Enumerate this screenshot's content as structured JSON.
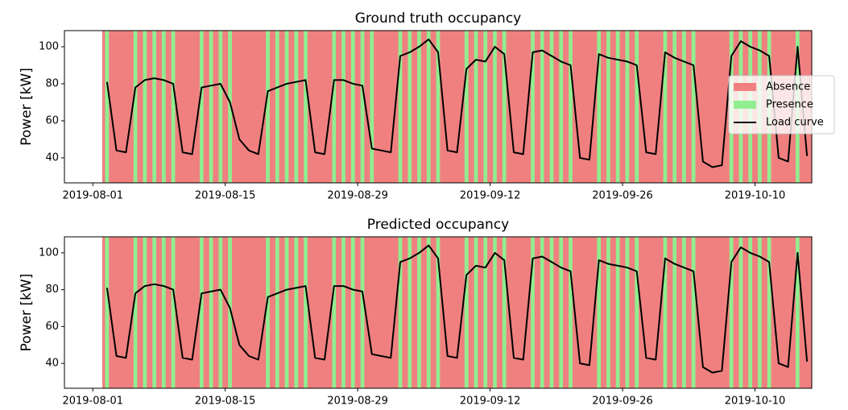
{
  "chart_data": [
    {
      "type": "line",
      "title": "Ground truth occupancy",
      "y_label": "Power [kW]",
      "xlim": [
        "2019-07-29",
        "2019-10-16"
      ],
      "xticks": [
        "2019-08-01",
        "2019-08-15",
        "2019-08-29",
        "2019-09-12",
        "2019-09-26",
        "2019-10-10"
      ],
      "ylim": [
        26.5,
        108.7
      ],
      "yticks": [
        40,
        60,
        80,
        100
      ],
      "legend": "right",
      "x": [
        "2019-08-02",
        "2019-08-03",
        "2019-08-04",
        "2019-08-05",
        "2019-08-06",
        "2019-08-07",
        "2019-08-08",
        "2019-08-09",
        "2019-08-10",
        "2019-08-11",
        "2019-08-12",
        "2019-08-13",
        "2019-08-14",
        "2019-08-15",
        "2019-08-16",
        "2019-08-17",
        "2019-08-18",
        "2019-08-19",
        "2019-08-20",
        "2019-08-21",
        "2019-08-22",
        "2019-08-23",
        "2019-08-24",
        "2019-08-25",
        "2019-08-26",
        "2019-08-27",
        "2019-08-28",
        "2019-08-29",
        "2019-08-30",
        "2019-08-31",
        "2019-09-01",
        "2019-09-02",
        "2019-09-03",
        "2019-09-04",
        "2019-09-05",
        "2019-09-06",
        "2019-09-07",
        "2019-09-08",
        "2019-09-09",
        "2019-09-10",
        "2019-09-11",
        "2019-09-12",
        "2019-09-13",
        "2019-09-14",
        "2019-09-15",
        "2019-09-16",
        "2019-09-17",
        "2019-09-18",
        "2019-09-19",
        "2019-09-20",
        "2019-09-21",
        "2019-09-22",
        "2019-09-23",
        "2019-09-24",
        "2019-09-25",
        "2019-09-26",
        "2019-09-27",
        "2019-09-28",
        "2019-09-29",
        "2019-09-30",
        "2019-10-01",
        "2019-10-02",
        "2019-10-03",
        "2019-10-04",
        "2019-10-05",
        "2019-10-06",
        "2019-10-07",
        "2019-10-08",
        "2019-10-09",
        "2019-10-10",
        "2019-10-11",
        "2019-10-12",
        "2019-10-13",
        "2019-10-14",
        "2019-10-15"
      ],
      "series": [
        {
          "name": "Absence",
          "color": "#f08080"
        },
        {
          "name": "Presence",
          "color": "#90ee90",
          "values": [
            1,
            0,
            0,
            1,
            1,
            1,
            1,
            1,
            0,
            0,
            1,
            1,
            1,
            1,
            0,
            0,
            0,
            1,
            1,
            1,
            1,
            1,
            0,
            0,
            1,
            1,
            1,
            1,
            1,
            0,
            0,
            1,
            1,
            1,
            1,
            1,
            0,
            0,
            1,
            1,
            1,
            1,
            1,
            0,
            0,
            1,
            1,
            1,
            1,
            1,
            0,
            0,
            1,
            1,
            1,
            1,
            1,
            0,
            0,
            1,
            1,
            1,
            1,
            0,
            0,
            0,
            1,
            1,
            1,
            1,
            1,
            0,
            0,
            1,
            0
          ]
        },
        {
          "name": "Load curve",
          "color": "#000000",
          "values": [
            81,
            44,
            43,
            78,
            82,
            83,
            82,
            80,
            43,
            42,
            78,
            79,
            80,
            70,
            50,
            44,
            42,
            76,
            78,
            80,
            81,
            82,
            43,
            42,
            82,
            82,
            80,
            79,
            45,
            44,
            43,
            95,
            97,
            100,
            104,
            97,
            44,
            43,
            88,
            93,
            92,
            100,
            96,
            43,
            42,
            97,
            98,
            95,
            92,
            90,
            40,
            39,
            96,
            94,
            93,
            92,
            90,
            43,
            42,
            97,
            94,
            92,
            90,
            38,
            35,
            36,
            95,
            103,
            100,
            98,
            95,
            40,
            38,
            100,
            41
          ]
        }
      ]
    },
    {
      "type": "line",
      "title": "Predicted occupancy",
      "y_label": "Power [kW]",
      "xlim": [
        "2019-07-29",
        "2019-10-16"
      ],
      "xticks": [
        "2019-08-01",
        "2019-08-15",
        "2019-08-29",
        "2019-09-12",
        "2019-09-26",
        "2019-10-10"
      ],
      "ylim": [
        26.5,
        108.7
      ],
      "yticks": [
        40,
        60,
        80,
        100
      ],
      "x": [
        "2019-08-02",
        "2019-08-03",
        "2019-08-04",
        "2019-08-05",
        "2019-08-06",
        "2019-08-07",
        "2019-08-08",
        "2019-08-09",
        "2019-08-10",
        "2019-08-11",
        "2019-08-12",
        "2019-08-13",
        "2019-08-14",
        "2019-08-15",
        "2019-08-16",
        "2019-08-17",
        "2019-08-18",
        "2019-08-19",
        "2019-08-20",
        "2019-08-21",
        "2019-08-22",
        "2019-08-23",
        "2019-08-24",
        "2019-08-25",
        "2019-08-26",
        "2019-08-27",
        "2019-08-28",
        "2019-08-29",
        "2019-08-30",
        "2019-08-31",
        "2019-09-01",
        "2019-09-02",
        "2019-09-03",
        "2019-09-04",
        "2019-09-05",
        "2019-09-06",
        "2019-09-07",
        "2019-09-08",
        "2019-09-09",
        "2019-09-10",
        "2019-09-11",
        "2019-09-12",
        "2019-09-13",
        "2019-09-14",
        "2019-09-15",
        "2019-09-16",
        "2019-09-17",
        "2019-09-18",
        "2019-09-19",
        "2019-09-20",
        "2019-09-21",
        "2019-09-22",
        "2019-09-23",
        "2019-09-24",
        "2019-09-25",
        "2019-09-26",
        "2019-09-27",
        "2019-09-28",
        "2019-09-29",
        "2019-09-30",
        "2019-10-01",
        "2019-10-02",
        "2019-10-03",
        "2019-10-04",
        "2019-10-05",
        "2019-10-06",
        "2019-10-07",
        "2019-10-08",
        "2019-10-09",
        "2019-10-10",
        "2019-10-11",
        "2019-10-12",
        "2019-10-13",
        "2019-10-14",
        "2019-10-15"
      ],
      "series": [
        {
          "name": "Absence",
          "color": "#f08080"
        },
        {
          "name": "Presence",
          "color": "#90ee90",
          "values": [
            1,
            0,
            0,
            1,
            1,
            1,
            1,
            1,
            0,
            0,
            1,
            1,
            1,
            1,
            0,
            0,
            0,
            1,
            1,
            1,
            1,
            1,
            0,
            0,
            1,
            1,
            1,
            1,
            0,
            0,
            0,
            1,
            1,
            1,
            1,
            1,
            0,
            0,
            1,
            1,
            1,
            1,
            1,
            0,
            0,
            1,
            1,
            1,
            1,
            1,
            0,
            0,
            1,
            1,
            1,
            1,
            1,
            0,
            0,
            1,
            1,
            1,
            1,
            0,
            0,
            0,
            1,
            1,
            1,
            1,
            1,
            0,
            0,
            1,
            0
          ]
        },
        {
          "name": "Load curve",
          "color": "#000000",
          "values": [
            81,
            44,
            43,
            78,
            82,
            83,
            82,
            80,
            43,
            42,
            78,
            79,
            80,
            70,
            50,
            44,
            42,
            76,
            78,
            80,
            81,
            82,
            43,
            42,
            82,
            82,
            80,
            79,
            45,
            44,
            43,
            95,
            97,
            100,
            104,
            97,
            44,
            43,
            88,
            93,
            92,
            100,
            96,
            43,
            42,
            97,
            98,
            95,
            92,
            90,
            40,
            39,
            96,
            94,
            93,
            92,
            90,
            43,
            42,
            97,
            94,
            92,
            90,
            38,
            35,
            36,
            95,
            103,
            100,
            98,
            95,
            40,
            38,
            100,
            41
          ]
        }
      ]
    }
  ]
}
